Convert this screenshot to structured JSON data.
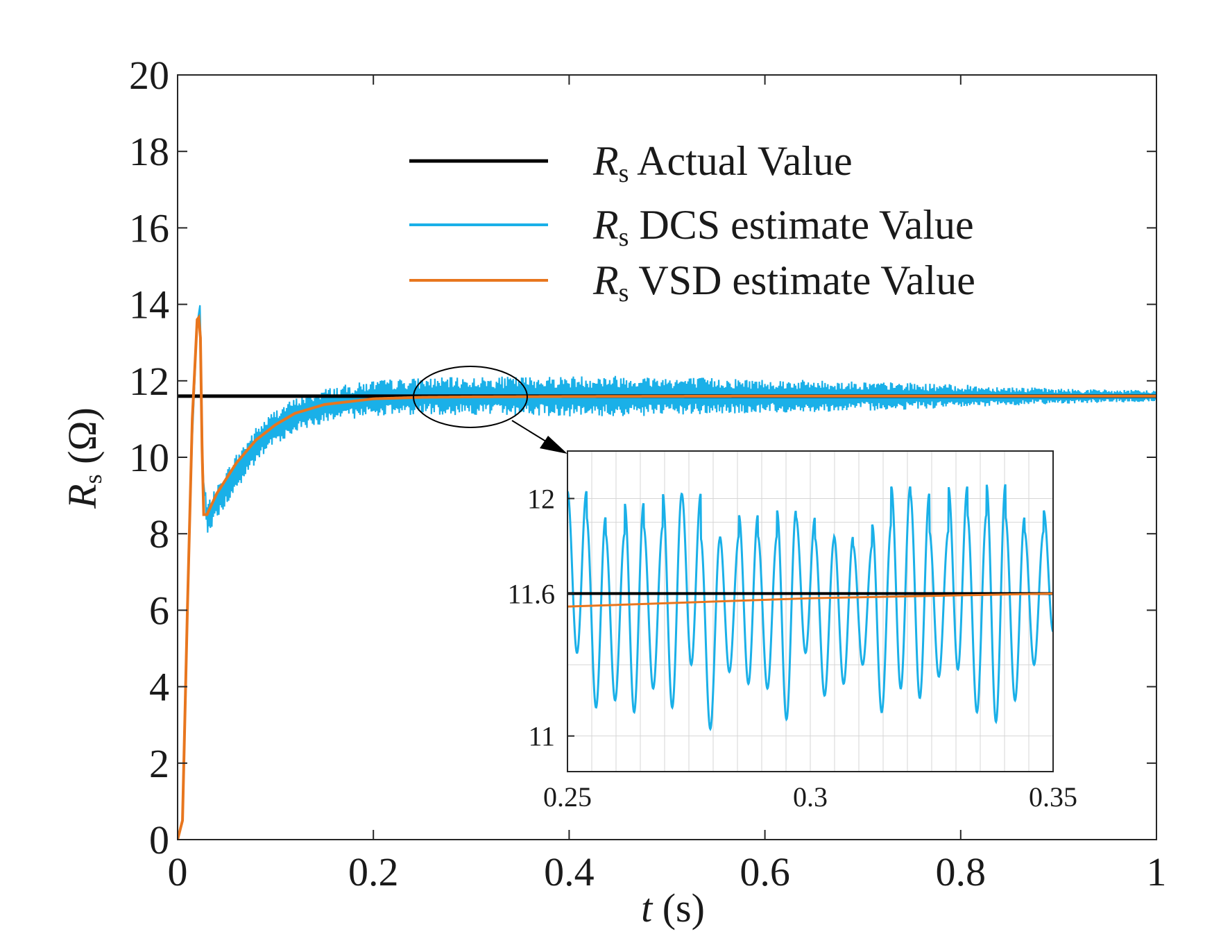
{
  "chart_data": [
    {
      "type": "line",
      "xlabel_var": "t",
      "xlabel_unit": "(s)",
      "ylabel_var": "R",
      "ylabel_sub": "s",
      "ylabel_unit": "(Ω)",
      "xlim": [
        0,
        1
      ],
      "ylim": [
        0,
        20
      ],
      "xticks": [
        0,
        0.2,
        0.4,
        0.6,
        0.8,
        1
      ],
      "xtick_labels": [
        "0",
        "0.2",
        "0.4",
        "0.6",
        "0.8",
        "1"
      ],
      "yticks": [
        0,
        2,
        4,
        6,
        8,
        10,
        12,
        14,
        16,
        18,
        20
      ],
      "ytick_labels": [
        "0",
        "2",
        "4",
        "6",
        "8",
        "10",
        "12",
        "14",
        "16",
        "18",
        "20"
      ],
      "grid": false,
      "legend_position": "top-right",
      "series": [
        {
          "name": "Actual Value",
          "legend_var": "R",
          "legend_sub": "s",
          "color": "#000000",
          "x": [
            0,
            1
          ],
          "y": [
            11.6,
            11.6
          ]
        },
        {
          "name": "DCS estimate Value",
          "legend_var": "R",
          "legend_sub": "s",
          "color": "#1ab0e8",
          "noisy": true,
          "x": [
            0,
            0.005,
            0.01,
            0.015,
            0.02,
            0.023,
            0.026,
            0.03,
            0.04,
            0.06,
            0.08,
            0.1,
            0.12,
            0.15,
            0.2,
            0.25,
            0.3,
            0.4,
            0.6,
            0.8,
            1.0
          ],
          "y": [
            0,
            0.5,
            6,
            10.5,
            13.5,
            14.0,
            9.5,
            8.4,
            8.8,
            9.6,
            10.3,
            10.8,
            11.1,
            11.35,
            11.55,
            11.6,
            11.6,
            11.6,
            11.6,
            11.6,
            11.6
          ],
          "noise_amplitude_x": [
            0,
            0.03,
            0.06,
            0.12,
            0.3,
            0.45,
            0.6,
            0.75,
            0.9,
            1.0
          ],
          "noise_amplitude_y": [
            0.1,
            0.4,
            0.5,
            0.45,
            0.5,
            0.55,
            0.45,
            0.35,
            0.2,
            0.15
          ]
        },
        {
          "name": "VSD estimate Value",
          "legend_var": "R",
          "legend_sub": "s",
          "color": "#e8761e",
          "x": [
            0,
            0.005,
            0.01,
            0.015,
            0.02,
            0.023,
            0.026,
            0.03,
            0.04,
            0.06,
            0.08,
            0.1,
            0.12,
            0.15,
            0.2,
            0.25,
            0.3,
            0.4,
            0.6,
            0.8,
            1.0
          ],
          "y": [
            0,
            0.5,
            6,
            11,
            13.6,
            13.7,
            8.5,
            8.5,
            9.05,
            9.85,
            10.45,
            10.85,
            11.15,
            11.38,
            11.53,
            11.57,
            11.58,
            11.59,
            11.6,
            11.6,
            11.6
          ]
        }
      ],
      "annotation": "ellipse around t≈0.3 with arrow pointing to zoomed inset"
    },
    {
      "type": "line",
      "role": "inset",
      "xlim": [
        0.25,
        0.35
      ],
      "ylim": [
        10.85,
        12.2
      ],
      "xticks": [
        0.25,
        0.3,
        0.35
      ],
      "xtick_labels": [
        "0.25",
        "0.3",
        "0.35"
      ],
      "yticks": [
        11,
        11.6,
        12
      ],
      "ytick_labels": [
        "11",
        "11.6",
        "12"
      ],
      "grid": true,
      "series": [
        {
          "name": "Actual Value",
          "color": "#000000",
          "x": [
            0.25,
            0.35
          ],
          "y": [
            11.6,
            11.6
          ]
        },
        {
          "name": "DCS estimate Value",
          "color": "#1ab0e8",
          "x": [
            0.25,
            0.254,
            0.258,
            0.262,
            0.266,
            0.27,
            0.274,
            0.278,
            0.282,
            0.286,
            0.29,
            0.294,
            0.298,
            0.302,
            0.306,
            0.31,
            0.314,
            0.318,
            0.322,
            0.326,
            0.33,
            0.334,
            0.338,
            0.342,
            0.346,
            0.35
          ],
          "peaks": [
            12.03,
            11.92,
            11.85,
            11.98,
            11.88,
            12.02,
            12.02,
            11.83,
            11.84,
            11.93,
            11.84,
            11.95,
            11.92,
            11.83,
            11.84,
            11.8,
            11.89,
            12.05,
            12.02,
            11.86,
            12.05,
            11.93,
            12.06,
            11.92,
            11.86,
            11.95
          ],
          "troughs": [
            11.35,
            11.12,
            11.15,
            11.1,
            11.2,
            11.12,
            11.3,
            11.03,
            11.27,
            11.22,
            11.2,
            11.07,
            11.35,
            11.17,
            11.22,
            11.3,
            11.1,
            11.2,
            11.16,
            11.25,
            11.28,
            11.1,
            11.06,
            11.15,
            11.3,
            11.44
          ]
        },
        {
          "name": "VSD estimate Value",
          "color": "#e8761e",
          "x": [
            0.25,
            0.3,
            0.35
          ],
          "y": [
            11.545,
            11.58,
            11.6
          ]
        }
      ]
    }
  ]
}
